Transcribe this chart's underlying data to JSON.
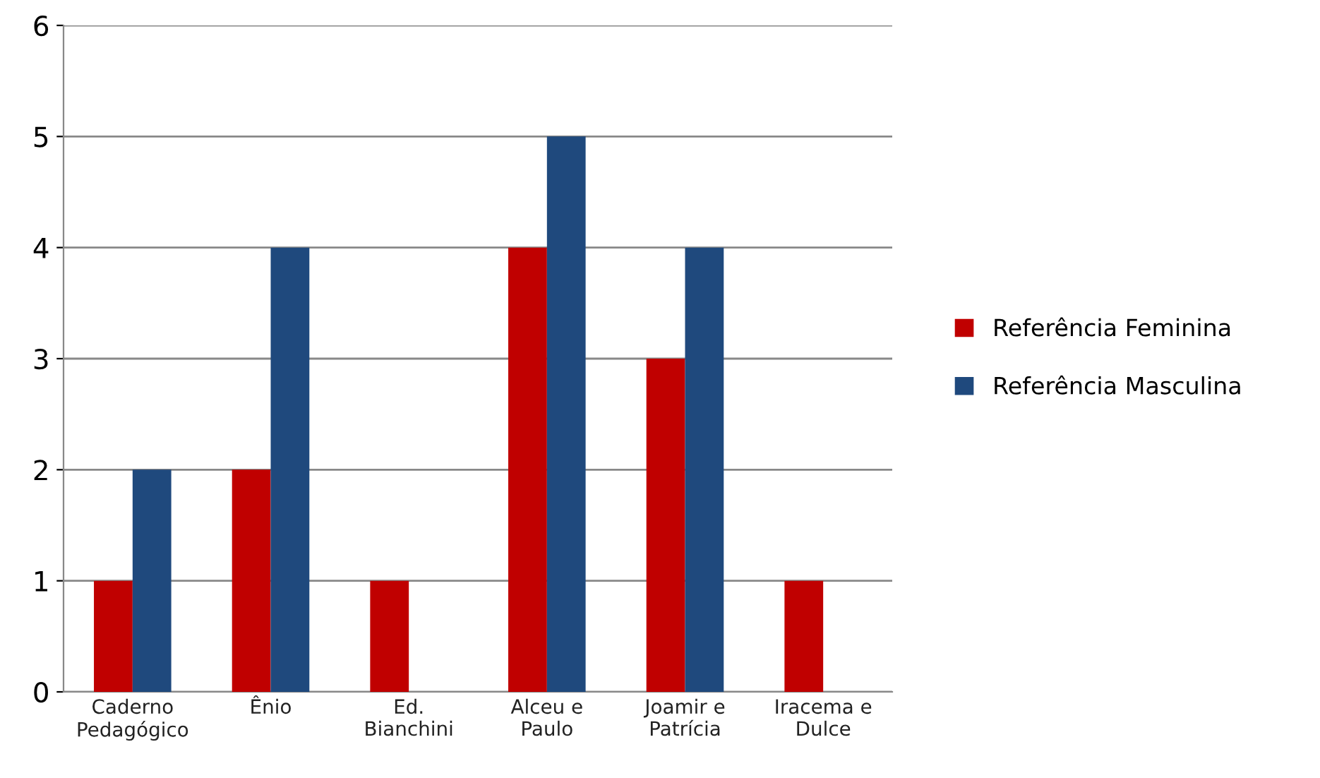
{
  "chart_data": {
    "type": "bar",
    "categories": [
      "Caderno\nPedagógico",
      "Ênio",
      "Ed.\nBianchini",
      "Alceu e\nPaulo",
      "Joamir e\nPatrícia",
      "Iracema e\nDulce"
    ],
    "series": [
      {
        "name": "Referência Feminina",
        "color": "#c00000",
        "values": [
          1,
          2,
          1,
          4,
          3,
          1
        ]
      },
      {
        "name": "Referência Masculina",
        "color": "#1f497d",
        "values": [
          2,
          4,
          0,
          5,
          4,
          0
        ]
      }
    ],
    "ylim": [
      0,
      6
    ],
    "yticks": [
      0,
      1,
      2,
      3,
      4,
      5,
      6
    ],
    "grid": "y",
    "legend": "right"
  }
}
